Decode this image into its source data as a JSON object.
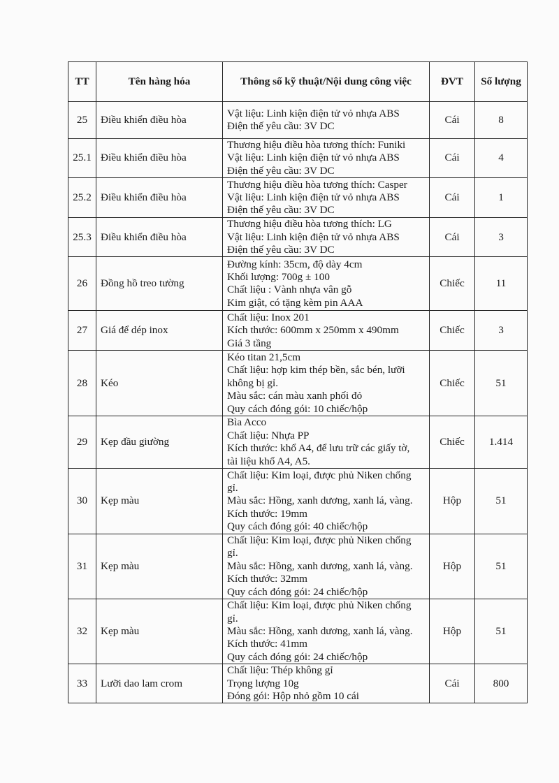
{
  "table": {
    "headers": [
      "TT",
      "Tên hàng hóa",
      "Thông số kỹ thuật/Nội dung công việc",
      "ĐVT",
      "Số lượng"
    ],
    "rows": [
      {
        "tt": "25",
        "name": "Điều khiển điều hòa",
        "spec": [
          "Vật liệu: Linh kiện điện tử vỏ nhựa ABS",
          "Điện thế yêu cầu: 3V DC"
        ],
        "unit": "Cái",
        "qty": "8"
      },
      {
        "tt": "25.1",
        "name": "Điều khiển điều hòa",
        "spec": [
          "Thương hiệu điều hòa tương thích: Funiki",
          "Vật liệu: Linh kiện điện tử vỏ nhựa ABS",
          "Điện thế yêu cầu: 3V DC"
        ],
        "unit": "Cái",
        "qty": "4"
      },
      {
        "tt": "25.2",
        "name": "Điều khiển điều hòa",
        "spec": [
          "Thương hiệu điều hòa tương thích: Casper",
          "Vật liệu: Linh kiện điện tử vỏ nhựa ABS",
          "Điện thế yêu cầu: 3V DC"
        ],
        "unit": "Cái",
        "qty": "1"
      },
      {
        "tt": "25.3",
        "name": "Điều khiển điều hòa",
        "spec": [
          "Thương hiệu điều hòa tương thích: LG",
          "Vật liệu: Linh kiện điện tử vỏ nhựa ABS",
          "Điện thế yêu cầu: 3V DC"
        ],
        "unit": "Cái",
        "qty": "3"
      },
      {
        "tt": "26",
        "name": "Đồng hồ treo tường",
        "spec": [
          "Đường kính: 35cm, độ dày 4cm",
          "Khối lượng: 700g ± 100",
          "Chất liệu : Vành nhựa vân gỗ",
          "Kim giật, có tặng kèm pin AAA"
        ],
        "unit": "Chiếc",
        "qty": "11"
      },
      {
        "tt": "27",
        "name": "Giá để dép inox",
        "spec": [
          "Chất liệu: Inox 201",
          "Kích thước: 600mm x 250mm x  490mm",
          "Giá 3 tầng"
        ],
        "unit": "Chiếc",
        "qty": "3"
      },
      {
        "tt": "28",
        "name": "Kéo",
        "spec": [
          "Kéo titan 21,5cm",
          "Chất liệu: hợp kim thép bền, sắc bén, lưỡi",
          "không bị gỉ.",
          "Màu sắc: cán màu xanh phối đỏ",
          "Quy cách đóng gói: 10 chiếc/hộp"
        ],
        "unit": "Chiếc",
        "qty": "51"
      },
      {
        "tt": "29",
        "name": "Kẹp đầu giường",
        "spec": [
          "Bìa Acco",
          "Chất liệu: Nhựa PP",
          "Kích thước: khổ A4, để lưu trữ các giấy tờ,",
          "tài liệu khổ A4, A5."
        ],
        "unit": "Chiếc",
        "qty": "1.414"
      },
      {
        "tt": "30",
        "name": "Kẹp màu",
        "spec": [
          "Chất liệu: Kim loại, được phủ Niken chống",
          "gỉ.",
          "Màu sắc: Hồng, xanh dương, xanh lá, vàng.",
          "Kích thước: 19mm",
          "Quy cách đóng gói: 40 chiếc/hộp"
        ],
        "unit": "Hộp",
        "qty": "51"
      },
      {
        "tt": "31",
        "name": "Kẹp màu",
        "spec": [
          "Chất liệu: Kim loại, được phủ Niken chống",
          "gỉ.",
          "Màu sắc: Hồng, xanh dương, xanh lá, vàng.",
          "Kích thước: 32mm",
          "Quy cách đóng gói: 24 chiếc/hộp"
        ],
        "unit": "Hộp",
        "qty": "51"
      },
      {
        "tt": "32",
        "name": "Kẹp màu",
        "spec": [
          "Chất liệu: Kim loại, được phủ Niken chống",
          "gỉ.",
          "Màu sắc: Hồng, xanh dương, xanh lá, vàng.",
          "Kích thước: 41mm",
          "Quy cách đóng gói: 24 chiếc/hộp"
        ],
        "unit": "Hộp",
        "qty": "51"
      },
      {
        "tt": "33",
        "name": "Lưỡi dao lam crom",
        "spec": [
          "Chất liệu: Thép không gỉ",
          "Trọng lượng 10g",
          "Đóng gói: Hộp nhỏ gồm 10 cái"
        ],
        "unit": "Cái",
        "qty": "800"
      }
    ]
  }
}
